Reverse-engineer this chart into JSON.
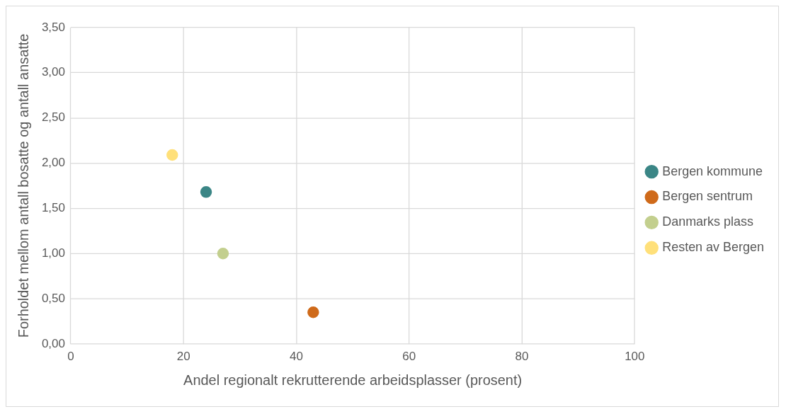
{
  "chart_data": {
    "type": "scatter",
    "xlabel": "Andel regionalt rekrutterende arbeidsplasser (prosent)",
    "ylabel": "Forholdet mellom antall bosatte og antall ansatte",
    "series": [
      {
        "name": "Bergen kommune",
        "color": "#3b8686",
        "x": [
          24
        ],
        "values": [
          1.68
        ]
      },
      {
        "name": "Bergen sentrum",
        "color": "#cf6a1a",
        "x": [
          43
        ],
        "values": [
          0.35
        ]
      },
      {
        "name": "Danmarks plass",
        "color": "#c3cf8e",
        "x": [
          27
        ],
        "values": [
          1.0
        ]
      },
      {
        "name": "Resten av Bergen",
        "color": "#ffe07a",
        "x": [
          18
        ],
        "values": [
          2.09
        ]
      }
    ],
    "xlim": [
      0,
      100
    ],
    "xticks": [
      0,
      20,
      40,
      60,
      80,
      100
    ],
    "ylim": [
      0,
      3.5
    ],
    "yticks": [
      {
        "value": 0,
        "label": "0,00"
      },
      {
        "value": 0.5,
        "label": "0,50"
      },
      {
        "value": 1,
        "label": "1,00"
      },
      {
        "value": 1.5,
        "label": "1,50"
      },
      {
        "value": 2,
        "label": "2,00"
      },
      {
        "value": 2.5,
        "label": "2,50"
      },
      {
        "value": 3,
        "label": "3,00"
      },
      {
        "value": 3.5,
        "label": "3,50"
      }
    ],
    "grid": true,
    "legend": "right",
    "marker": "circle"
  }
}
